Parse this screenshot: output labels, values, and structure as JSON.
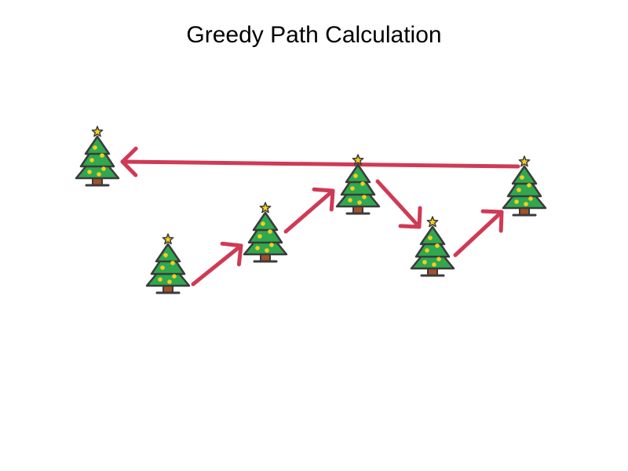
{
  "title": "Greedy Path Calculation",
  "colors": {
    "arrow": "#cf3a55",
    "foliage": "#2fa84f",
    "outline": "#3b3b3b",
    "trunk": "#a0522d",
    "ornament": "#f2d01c",
    "star": "#f2d01c"
  },
  "icon": "christmas-tree-icon",
  "nodes": [
    {
      "id": "t1"
    },
    {
      "id": "t2"
    },
    {
      "id": "t3"
    },
    {
      "id": "t4"
    },
    {
      "id": "t5"
    },
    {
      "id": "t6"
    }
  ],
  "path": [
    {
      "from": "t2",
      "to": "t3"
    },
    {
      "from": "t3",
      "to": "t4"
    },
    {
      "from": "t4",
      "to": "t5"
    },
    {
      "from": "t5",
      "to": "t6"
    },
    {
      "from": "t6",
      "to": "t1"
    }
  ]
}
